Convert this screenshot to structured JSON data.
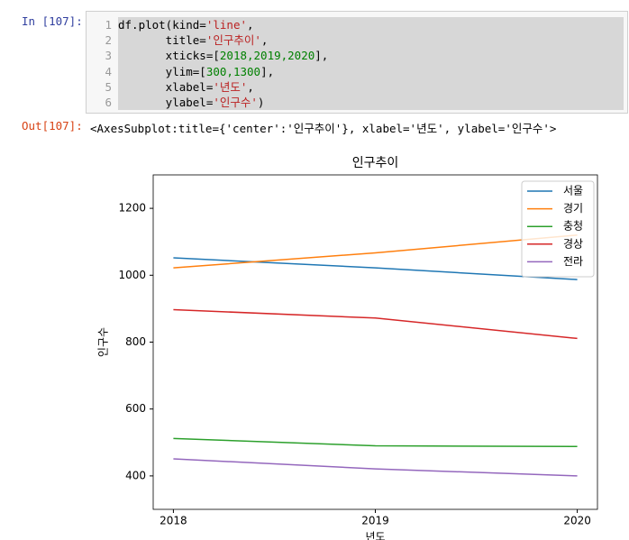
{
  "cell": {
    "prompt_in": "In [107]:",
    "line_numbers": [
      "1",
      "2",
      "3",
      "4",
      "5",
      "6"
    ],
    "code_lines": [
      [
        {
          "text": "df.plot(kind=",
          "color": "#000000"
        },
        {
          "text": "'line'",
          "color": "#ba2121"
        },
        {
          "text": ",",
          "color": "#000000"
        }
      ],
      [
        {
          "text": "       title=",
          "color": "#000000"
        },
        {
          "text": "'인구추이'",
          "color": "#ba2121"
        },
        {
          "text": ",",
          "color": "#000000"
        }
      ],
      [
        {
          "text": "       xticks=[",
          "color": "#000000"
        },
        {
          "text": "2018,2019,2020",
          "color": "#008000"
        },
        {
          "text": "],",
          "color": "#000000"
        }
      ],
      [
        {
          "text": "       ylim=[",
          "color": "#000000"
        },
        {
          "text": "300,1300",
          "color": "#008000"
        },
        {
          "text": "],",
          "color": "#000000"
        }
      ],
      [
        {
          "text": "       xlabel=",
          "color": "#000000"
        },
        {
          "text": "'년도'",
          "color": "#ba2121"
        },
        {
          "text": ",",
          "color": "#000000"
        }
      ],
      [
        {
          "text": "       ylabel=",
          "color": "#000000"
        },
        {
          "text": "'인구수'",
          "color": "#ba2121"
        },
        {
          "text": ")",
          "color": "#000000"
        }
      ]
    ],
    "prompt_out": "Out[107]:",
    "output_text": "<AxesSubplot:title={'center':'인구추이'}, xlabel='년도', ylabel='인구수'>"
  },
  "chart_data": {
    "type": "line",
    "title": "인구추이",
    "x_label": "년도",
    "y_label": "인구수",
    "x": [
      2018,
      2019,
      2020
    ],
    "xlim": [
      2017.9,
      2020.1
    ],
    "xticks": [
      2018,
      2019,
      2020
    ],
    "ylim": [
      300,
      1300
    ],
    "yticks": [
      400,
      600,
      800,
      1000,
      1200
    ],
    "legend": "upper right",
    "series": [
      {
        "name": "서울",
        "color": "#1f77b4",
        "values": [
          1052,
          1022,
          987
        ]
      },
      {
        "name": "경기",
        "color": "#ff7f0e",
        "values": [
          1022,
          1067,
          1120
        ]
      },
      {
        "name": "충청",
        "color": "#2ca02c",
        "values": [
          512,
          490,
          488
        ]
      },
      {
        "name": "경상",
        "color": "#d62728",
        "values": [
          897,
          872,
          811
        ]
      },
      {
        "name": "전라",
        "color": "#9467bd",
        "values": [
          451,
          421,
          400
        ]
      }
    ]
  }
}
